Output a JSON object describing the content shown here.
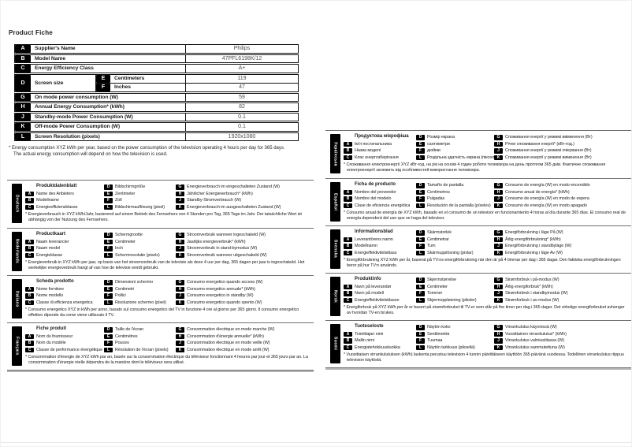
{
  "page_title": "Product Fiche",
  "fiche": {
    "rows_top": [
      {
        "key": "A",
        "label": "Supplier's Name",
        "value": "Philips"
      },
      {
        "key": "B",
        "label": "Model Name",
        "value": "47PFL6198K/12"
      },
      {
        "key": "C",
        "label": "Energy Efficiency Class",
        "value": "A+"
      }
    ],
    "screen_size": {
      "key": "D",
      "label": "Screen size",
      "sub": [
        {
          "key": "E",
          "label": "Centimeters",
          "value": "119"
        },
        {
          "key": "F",
          "label": "Inches",
          "value": "47"
        }
      ]
    },
    "rows_bottom": [
      {
        "key": "G",
        "label": "On mode power consumption (W)",
        "value": "59"
      },
      {
        "key": "H",
        "label": "Annual Energy Consumption* (kWh)",
        "value": "82"
      },
      {
        "key": "J",
        "label": "Standby-mode Power Consumption (W)",
        "value": "0.1"
      },
      {
        "key": "K",
        "label": "Off-mode Power Consumption (W)",
        "value": "0.1"
      },
      {
        "key": "L",
        "label": "Screen Resolution (pixels)",
        "value": "1920x1080"
      }
    ],
    "footnote_line1": "* Energy consumption XYZ kWh per year, based on the power consumption of the television operating 4 hours per day for 365 days.",
    "footnote_line2": "The actual energy consumption will depend on how the television is used."
  },
  "sections": {
    "left": [
      {
        "language": "Deutsch",
        "title": "Produktdatenblatt",
        "col1": [
          {
            "key": "A",
            "label": "Name des Anbieters"
          },
          {
            "key": "B",
            "label": "Modellname"
          },
          {
            "key": "C",
            "label": "Energieeffizienzklasse"
          }
        ],
        "col2": [
          {
            "key": "D",
            "label": "Bildschirmgröße"
          },
          {
            "key": "E",
            "label": "Zentimeter"
          },
          {
            "key": "F",
            "label": "Zoll"
          },
          {
            "key": "L",
            "label": "Bildschirmauflösung (pixel)"
          }
        ],
        "col3": [
          {
            "key": "G",
            "label": "Energieverbrauch im eingeschalteten Zustand (W)"
          },
          {
            "key": "H",
            "label": "Jährlicher Energieverbrauch* (kWh)"
          },
          {
            "key": "J",
            "label": "Standby-Stromverbrauch (W)"
          },
          {
            "key": "K",
            "label": "Energieverbrauch im ausgeschalteten Zustand (W)"
          }
        ],
        "footnote": "* Energieverbrauch in XYZ kWh/Jahr, basierend auf einem Betrieb des Fernsehers von 4 Stunden pro Tag, 365 Tage im Jahr. Der tatsächliche Wert ist abhängig von der Nutzung des Fernsehers."
      },
      {
        "language": "Nederlands",
        "title": "Productkaart",
        "col1": [
          {
            "key": "A",
            "label": "Naam leverancier"
          },
          {
            "key": "B",
            "label": "Naam model"
          },
          {
            "key": "C",
            "label": "Energieklasse"
          }
        ],
        "col2": [
          {
            "key": "D",
            "label": "Schermgrootte"
          },
          {
            "key": "E",
            "label": "Centimeter"
          },
          {
            "key": "F",
            "label": "Inch"
          },
          {
            "key": "L",
            "label": "Schermresolutie (pixels)"
          }
        ],
        "col3": [
          {
            "key": "G",
            "label": "Stroomverbruik wanneer ingeschakeld (W)"
          },
          {
            "key": "H",
            "label": "Jaarlijks energieverbruik* (kWh)"
          },
          {
            "key": "J",
            "label": "Stroomverbruik in stand-bymodus (W)"
          },
          {
            "key": "K",
            "label": "Stroomverbruik wanneer uitgeschakeld (W)"
          }
        ],
        "footnote": "* Energieverbruik in XYZ kWh per jaar, op basis van het stroomverbruik van de televisie als deze 4 uur per dag, 365 dagen per jaar is ingeschakeld. Het werkelijke energieverbruik hangt af van hoe de televisie wordt gebruikt."
      },
      {
        "language": "Italiano",
        "title": "Scheda prodotto",
        "col1": [
          {
            "key": "A",
            "label": "Nome fornitore"
          },
          {
            "key": "B",
            "label": "Nome modello"
          },
          {
            "key": "C",
            "label": "Classe di efficienza energetica"
          }
        ],
        "col2": [
          {
            "key": "D",
            "label": "Dimensioni schermo"
          },
          {
            "key": "E",
            "label": "Centimetri"
          },
          {
            "key": "F",
            "label": "Pollici"
          },
          {
            "key": "L",
            "label": "Risoluzione schermo (pixel)"
          }
        ],
        "col3": [
          {
            "key": "G",
            "label": "Consumo energetico quando acceso (W)"
          },
          {
            "key": "H",
            "label": "Consumo energetico annuale* (kWh)"
          },
          {
            "key": "J",
            "label": "Consumo energetico in standby (W)"
          },
          {
            "key": "K",
            "label": "Consumo energetico quando spento (W)"
          }
        ],
        "footnote": "* Consumo energetico XYZ in kWh per anno, basato sul consumo energetico del TV in funzione 4 ore al giorno per 365 giorni. Il consumo energetico effettivo dipende da come viene utilizzato il TV."
      },
      {
        "language": "Français",
        "title": "Fiche produit",
        "col1": [
          {
            "key": "A",
            "label": "Nom du fournisseur"
          },
          {
            "key": "B",
            "label": "Nom du modèle"
          },
          {
            "key": "C",
            "label": "Classe de performance énergétique"
          }
        ],
        "col2": [
          {
            "key": "D",
            "label": "Taille de l'écran"
          },
          {
            "key": "E",
            "label": "Centimètres"
          },
          {
            "key": "F",
            "label": "Pouces"
          },
          {
            "key": "L",
            "label": "Résolution de l'écran (pixels)"
          }
        ],
        "col3": [
          {
            "key": "G",
            "label": "Consommation électrique en mode marche (W)"
          },
          {
            "key": "H",
            "label": "Consommation d'énergie annuelle* (kWh)"
          },
          {
            "key": "J",
            "label": "Consommation électrique en mode veille (W)"
          },
          {
            "key": "K",
            "label": "Consommation électrique en mode arrêt (W)"
          }
        ],
        "footnote": "* Consommation d'énergie de XYZ kWh par an, basée sur la consommation électrique du téléviseur fonctionnant 4 heures par jour et 365 jours par an. La consommation d'énergie réelle dépendra de la manière dont le téléviseur sera utilisé."
      }
    ],
    "right": [
      {
        "language": "Українська",
        "title": "Продуктова мікрофіша",
        "col1": [
          {
            "key": "A",
            "label": "Ім'я постачальника"
          },
          {
            "key": "B",
            "label": "Назва моделі"
          },
          {
            "key": "C",
            "label": "Клас енергозберігання"
          }
        ],
        "col2": [
          {
            "key": "D",
            "label": "Розмір екрана"
          },
          {
            "key": "E",
            "label": "сантиметри"
          },
          {
            "key": "F",
            "label": "дюйми"
          },
          {
            "key": "L",
            "label": "Роздільна здатність екрана (піксел)"
          }
        ],
        "col3": [
          {
            "key": "G",
            "label": "Споживання енергії у режимі ввімкнення (Вт)"
          },
          {
            "key": "H",
            "label": "Річне споживання енергії* (кВт-год.)"
          },
          {
            "key": "J",
            "label": "Споживання енергії у режимі очікування (Вт)"
          },
          {
            "key": "K",
            "label": "Споживання енергії у режимі вимкнення (Вт)"
          }
        ],
        "footnote": "* Споживання електроенергії XYZ кВт-год. на рік на основі 4 годин роботи телевізора на день протягом 365 днів. Фактичне споживання електроенергії залежить від особливостей використання телевізора."
      },
      {
        "language": "Español",
        "title": "Ficha de producto",
        "col1": [
          {
            "key": "A",
            "label": "Nombre del proveedor"
          },
          {
            "key": "B",
            "label": "Nombre del modelo"
          },
          {
            "key": "C",
            "label": "Clase de eficiencia energética"
          }
        ],
        "col2": [
          {
            "key": "D",
            "label": "Tamaño de pantalla"
          },
          {
            "key": "E",
            "label": "Centímetros"
          },
          {
            "key": "F",
            "label": "Pulgadas"
          },
          {
            "key": "L",
            "label": "Resolución de la pantalla (píxeles)"
          }
        ],
        "col3": [
          {
            "key": "G",
            "label": "Consumo de energía (W) en modo encendido"
          },
          {
            "key": "H",
            "label": "Consumo anual de energía* (kWh)"
          },
          {
            "key": "J",
            "label": "Consumo de energía (W) en modo de espera"
          },
          {
            "key": "K",
            "label": "Consumo de energía (W) en modo apagado"
          }
        ],
        "footnote": "* Consumo anual de energía de XYZ kWh, basado en el consumo de un televisor en funcionamiento 4 horas al día durante 365 días. El consumo real de energía dependerá del uso que se haga del televisor."
      },
      {
        "language": "Svenska",
        "title": "Informationsblad",
        "col1": [
          {
            "key": "A",
            "label": "Leverantörens namn"
          },
          {
            "key": "B",
            "label": "Modellnamn"
          },
          {
            "key": "C",
            "label": "Energieffektivitetsklass"
          }
        ],
        "col2": [
          {
            "key": "D",
            "label": "Skärmstorlek"
          },
          {
            "key": "E",
            "label": "Centimetrar"
          },
          {
            "key": "F",
            "label": "Tum"
          },
          {
            "key": "L",
            "label": "Skärmupplösning (pixlar)"
          }
        ],
        "col3": [
          {
            "key": "G",
            "label": "Energiförbrukning i läge På (W)"
          },
          {
            "key": "H",
            "label": "Årlig energiförbrukning* (kWh)"
          },
          {
            "key": "J",
            "label": "Energiförbrukning i standbyläge (W)"
          },
          {
            "key": "K",
            "label": "Energiförbrukning i läge Av (W)"
          }
        ],
        "footnote": "* Energiförbrukning XYZ kWh per år, baserat på TV:ns energiförbrukning när den är på 4 timmar per dag i 365 dagar. Den faktiska energiförbrukningen beror på hur TV:n används."
      },
      {
        "language": "Norsk",
        "title": "Produktinfo",
        "col1": [
          {
            "key": "A",
            "label": "Navn på leverandør"
          },
          {
            "key": "B",
            "label": "Navn på modell"
          },
          {
            "key": "C",
            "label": "Energieffektivitetsklasse"
          }
        ],
        "col2": [
          {
            "key": "D",
            "label": "Skjermstørrelse"
          },
          {
            "key": "E",
            "label": "Centimeter"
          },
          {
            "key": "F",
            "label": "Tommer"
          },
          {
            "key": "L",
            "label": "Skjermoppløsning (piksler)"
          }
        ],
        "col3": [
          {
            "key": "G",
            "label": "Strømforbruk i på-modus (W)"
          },
          {
            "key": "H",
            "label": "Årlig energiforbruk* (kWh)"
          },
          {
            "key": "J",
            "label": "Strømforbruk i standbymodus (W)"
          },
          {
            "key": "K",
            "label": "Strømforbruk i av-modus (W)"
          }
        ],
        "footnote": "* Energiforbruk på XYZ kWh per år er basert på strømforbruket til TV-er som står på fire timer per dag i 365 dager. Det virkelige energiforbruket avhenger av hvordan TV-en brukes."
      },
      {
        "language": "Suomi",
        "title": "Tuoteseloste",
        "col1": [
          {
            "key": "A",
            "label": "Toimittajan nimi"
          },
          {
            "key": "B",
            "label": "Mallin nimi"
          },
          {
            "key": "C",
            "label": "Energiatehokkuusluokka"
          }
        ],
        "col2": [
          {
            "key": "D",
            "label": "Näytön koko"
          },
          {
            "key": "E",
            "label": "Senttimetriä"
          },
          {
            "key": "F",
            "label": "Tuumaa"
          },
          {
            "key": "L",
            "label": "Näytön tarkkuus (pikseliä)"
          }
        ],
        "col3": [
          {
            "key": "G",
            "label": "Virrankulutus käynnissä (W)"
          },
          {
            "key": "H",
            "label": "Vuosittainen virrankulutus* (kWh)"
          },
          {
            "key": "J",
            "label": "Virrankulutus valmiustilassa (W)"
          },
          {
            "key": "K",
            "label": "Virrankulutus sammutettuna (W)"
          }
        ],
        "footnote": "* Vuosittaisen virrankulutuksen (kWh) laskenta perustuu television 4 tunnin päivittäiseen käyttöön 365 päivänä vuodessa. Todellinen virrankulutus riippuu television käytöstä."
      }
    ]
  }
}
